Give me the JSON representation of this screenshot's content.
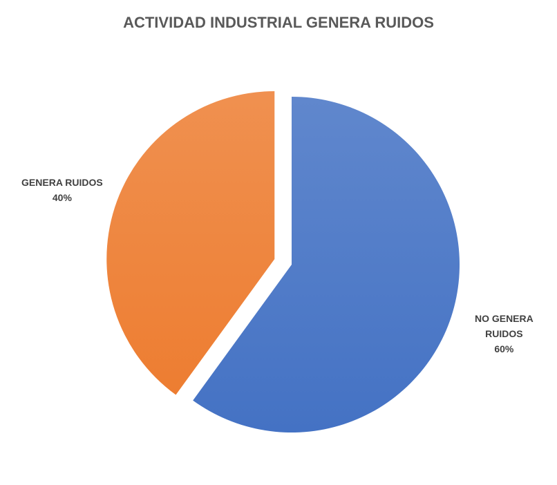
{
  "chart_data": {
    "type": "pie",
    "title": "ACTIVIDAD INDUSTRIAL GENERA RUIDOS",
    "categories": [
      "NO GENERA RUIDOS",
      "GENERA RUIDOS"
    ],
    "values": [
      60,
      40
    ],
    "value_labels": [
      "60%",
      "40%"
    ],
    "colors": [
      "#4472c4",
      "#ed7d31"
    ]
  }
}
